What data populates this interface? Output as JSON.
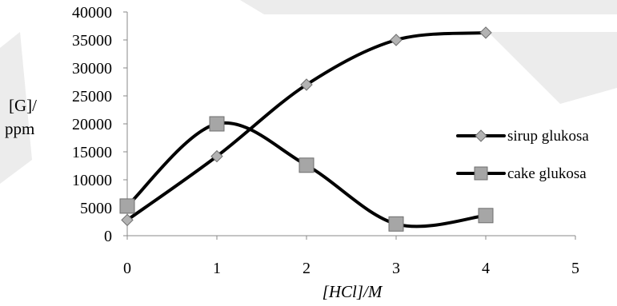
{
  "chart_data": {
    "type": "line",
    "x": [
      0,
      1,
      2,
      3,
      4
    ],
    "xlim": [
      0,
      5
    ],
    "ylim": [
      0,
      40000
    ],
    "xticks": [
      "0",
      "1",
      "2",
      "3",
      "4",
      "5"
    ],
    "yticks": [
      "0",
      "5000",
      "10000",
      "15000",
      "20000",
      "25000",
      "30000",
      "35000",
      "40000"
    ],
    "xlabel": "[HCl]/M",
    "ylabel_line1": "[G]/",
    "ylabel_line2": "ppm",
    "grid": false,
    "smooth": true,
    "legend_position": "right",
    "series": [
      {
        "name": "sirup glukosa",
        "marker": "diamond",
        "marker_fill": "#b3b3b3",
        "values": [
          2800,
          14200,
          27000,
          35000,
          36300
        ]
      },
      {
        "name": "cake glukosa",
        "marker": "square",
        "marker_fill": "#a6a6a6",
        "values": [
          5300,
          20000,
          12600,
          2100,
          3600
        ]
      }
    ]
  }
}
